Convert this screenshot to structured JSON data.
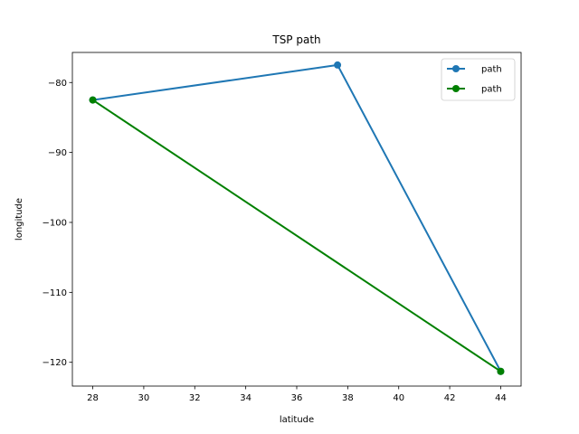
{
  "chart_data": {
    "type": "line",
    "title": "TSP path",
    "xlabel": "latitude",
    "ylabel": "longitude",
    "xlim": [
      27.2,
      44.8
    ],
    "ylim": [
      -123.4,
      -75.7
    ],
    "xticks": [
      28,
      30,
      32,
      34,
      36,
      38,
      40,
      42,
      44
    ],
    "yticks": [
      -120,
      -110,
      -100,
      -90,
      -80
    ],
    "grid": false,
    "legend_placement": "top-right",
    "series": [
      {
        "name": "path",
        "color": "#1f77b4",
        "x": [
          28.0,
          37.6,
          44.0
        ],
        "y": [
          -82.5,
          -77.5,
          -121.3
        ]
      },
      {
        "name": "path",
        "color": "#008000",
        "x": [
          28.0,
          44.0
        ],
        "y": [
          -82.5,
          -121.3
        ]
      }
    ]
  }
}
